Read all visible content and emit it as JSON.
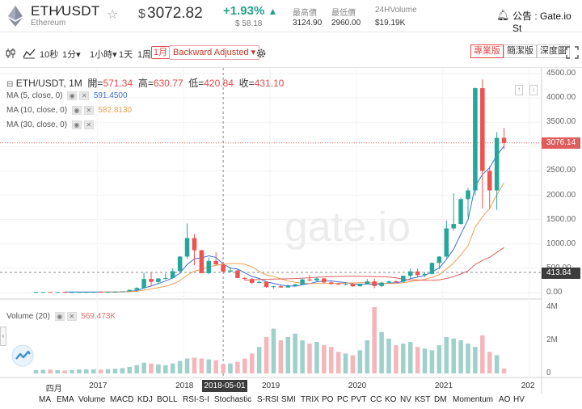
{
  "header": {
    "pair": "ETH∕USDT",
    "coin_name": "Ethereum",
    "currency_symbol": "$",
    "price": "3072.82",
    "change_pct": "+1.93%",
    "change_abs": "$ 58.18",
    "high_label": "最高價",
    "high_value": "3124.90",
    "low_label": "最低價",
    "low_value": "2960.00",
    "volume_label": "24HVolume",
    "volume_value": "$19.19K",
    "notice_text": "公告 : Gate.io St"
  },
  "toolbar": {
    "intervals": [
      "10秒",
      "1分",
      "1小時",
      "1天",
      "1周",
      "1月"
    ],
    "active_interval": "1月",
    "adjust_option": "Backward Adjusted",
    "view_tabs": [
      "專業版",
      "簡潔版",
      "深度圖"
    ],
    "active_view": "專業版"
  },
  "legend": {
    "title": "ETH/USDT, 1M",
    "open_label": "開=",
    "open": "571.34",
    "high_label": "高=",
    "high": "630.77",
    "low_label": "低=",
    "low": "420.84",
    "close_label": "收=",
    "close": "431.10",
    "ma5_label": "MA (5, close, 0)",
    "ma5_value": "591.4500",
    "ma10_label": "MA (10, close, 0)",
    "ma10_value": "582.8130",
    "ma30_label": "MA (30, close, 0)",
    "volume_label": "Volume (20)",
    "volume_value": "569.473K"
  },
  "crosshair": {
    "price_label": "413.84",
    "date_label": "2018-05-01"
  },
  "last_price_label": "3076.14",
  "watermark": "gate.io",
  "price_axis": [
    "4500.00",
    "4000.00",
    "3500.00",
    "3000.00",
    "2500.00",
    "2000.00",
    "1500.00",
    "1000.00",
    "500.00",
    "0.00"
  ],
  "volume_axis": [
    "4M",
    "2M",
    "0"
  ],
  "time_axis": [
    "四月",
    "2017",
    "2018",
    "2019",
    "2020",
    "2021",
    "202"
  ],
  "indicators": [
    "MA",
    "EMA",
    "Volume",
    "MACD",
    "KDJ",
    "BOLL",
    "RSI-S-I",
    "Stochastic",
    "S-RSI",
    "SMI",
    "TRIX",
    "PO",
    "PC",
    "PVT",
    "CC",
    "KO",
    "NV",
    "KST",
    "DM",
    "Momentum",
    "AO",
    "HV"
  ],
  "colors": {
    "up": "#26a69a",
    "down": "#ef5350",
    "ma5": "#3b6fd4",
    "ma10": "#f0a050",
    "ma30": "#e05d5d",
    "accent": "#e04b4b"
  },
  "chart_data": {
    "type": "candlestick",
    "y_range": [
      0,
      4500
    ],
    "volume_range": [
      0,
      4000000
    ],
    "candles": [
      {
        "o": 11,
        "h": 12,
        "l": 10,
        "c": 12,
        "v": 200000
      },
      {
        "o": 12,
        "h": 14,
        "l": 11,
        "c": 13,
        "v": 220000
      },
      {
        "o": 13,
        "h": 15,
        "l": 11,
        "c": 12,
        "v": 230000
      },
      {
        "o": 12,
        "h": 13,
        "l": 11,
        "c": 12,
        "v": 200000
      },
      {
        "o": 12,
        "h": 13,
        "l": 10,
        "c": 11,
        "v": 180000
      },
      {
        "o": 11,
        "h": 12,
        "l": 10,
        "c": 11,
        "v": 200000
      },
      {
        "o": 11,
        "h": 13,
        "l": 10,
        "c": 12,
        "v": 240000
      },
      {
        "o": 12,
        "h": 14,
        "l": 11,
        "c": 13,
        "v": 250000
      },
      {
        "o": 13,
        "h": 15,
        "l": 12,
        "c": 14,
        "v": 250000
      },
      {
        "o": 14,
        "h": 16,
        "l": 12,
        "c": 13,
        "v": 230000
      },
      {
        "o": 13,
        "h": 17,
        "l": 12,
        "c": 15,
        "v": 260000
      },
      {
        "o": 15,
        "h": 19,
        "l": 14,
        "c": 17,
        "v": 280000
      },
      {
        "o": 17,
        "h": 25,
        "l": 16,
        "c": 24,
        "v": 320000
      },
      {
        "o": 24,
        "h": 60,
        "l": 22,
        "c": 55,
        "v": 400000
      },
      {
        "o": 55,
        "h": 110,
        "l": 50,
        "c": 95,
        "v": 500000
      },
      {
        "o": 95,
        "h": 410,
        "l": 80,
        "c": 280,
        "v": 650000
      },
      {
        "o": 280,
        "h": 420,
        "l": 130,
        "c": 220,
        "v": 600000
      },
      {
        "o": 220,
        "h": 300,
        "l": 170,
        "c": 290,
        "v": 550000
      },
      {
        "o": 290,
        "h": 395,
        "l": 270,
        "c": 300,
        "v": 500000
      },
      {
        "o": 300,
        "h": 495,
        "l": 280,
        "c": 440,
        "v": 600000
      },
      {
        "o": 440,
        "h": 750,
        "l": 420,
        "c": 740,
        "v": 750000
      },
      {
        "o": 740,
        "h": 1420,
        "l": 700,
        "c": 1120,
        "v": 900000
      },
      {
        "o": 1120,
        "h": 1200,
        "l": 560,
        "c": 870,
        "v": 950000
      },
      {
        "o": 870,
        "h": 880,
        "l": 400,
        "c": 400,
        "v": 900000
      },
      {
        "o": 400,
        "h": 720,
        "l": 380,
        "c": 650,
        "v": 850000
      },
      {
        "o": 650,
        "h": 830,
        "l": 570,
        "c": 580,
        "v": 800000
      },
      {
        "o": 571,
        "h": 631,
        "l": 421,
        "c": 431,
        "v": 569473
      },
      {
        "o": 431,
        "h": 530,
        "l": 420,
        "c": 455,
        "v": 600000
      },
      {
        "o": 455,
        "h": 475,
        "l": 300,
        "c": 300,
        "v": 700000
      },
      {
        "o": 300,
        "h": 320,
        "l": 250,
        "c": 280,
        "v": 900000
      },
      {
        "o": 280,
        "h": 300,
        "l": 180,
        "c": 200,
        "v": 1200000
      },
      {
        "o": 200,
        "h": 240,
        "l": 190,
        "c": 220,
        "v": 1600000
      },
      {
        "o": 220,
        "h": 230,
        "l": 100,
        "c": 115,
        "v": 2200000
      },
      {
        "o": 115,
        "h": 140,
        "l": 83,
        "c": 130,
        "v": 2700000
      },
      {
        "o": 130,
        "h": 160,
        "l": 100,
        "c": 105,
        "v": 2000000
      },
      {
        "o": 105,
        "h": 165,
        "l": 100,
        "c": 135,
        "v": 2200000
      },
      {
        "o": 135,
        "h": 180,
        "l": 130,
        "c": 170,
        "v": 2400000
      },
      {
        "o": 170,
        "h": 300,
        "l": 160,
        "c": 270,
        "v": 2000000
      },
      {
        "o": 270,
        "h": 365,
        "l": 230,
        "c": 250,
        "v": 1800000
      },
      {
        "o": 250,
        "h": 325,
        "l": 220,
        "c": 290,
        "v": 1900000
      },
      {
        "o": 290,
        "h": 300,
        "l": 200,
        "c": 210,
        "v": 1700000
      },
      {
        "o": 210,
        "h": 240,
        "l": 160,
        "c": 180,
        "v": 1600000
      },
      {
        "o": 180,
        "h": 200,
        "l": 160,
        "c": 175,
        "v": 1300000
      },
      {
        "o": 175,
        "h": 195,
        "l": 150,
        "c": 180,
        "v": 1200000
      },
      {
        "o": 180,
        "h": 195,
        "l": 120,
        "c": 130,
        "v": 1100000
      },
      {
        "o": 130,
        "h": 185,
        "l": 125,
        "c": 180,
        "v": 1400000
      },
      {
        "o": 180,
        "h": 280,
        "l": 170,
        "c": 230,
        "v": 2000000
      },
      {
        "o": 230,
        "h": 290,
        "l": 90,
        "c": 135,
        "v": 4000000
      },
      {
        "o": 135,
        "h": 225,
        "l": 110,
        "c": 205,
        "v": 2500000
      },
      {
        "o": 205,
        "h": 250,
        "l": 190,
        "c": 230,
        "v": 2100000
      },
      {
        "o": 230,
        "h": 250,
        "l": 200,
        "c": 225,
        "v": 1700000
      },
      {
        "o": 225,
        "h": 350,
        "l": 210,
        "c": 345,
        "v": 1800000
      },
      {
        "o": 345,
        "h": 490,
        "l": 300,
        "c": 435,
        "v": 1900000
      },
      {
        "o": 435,
        "h": 490,
        "l": 310,
        "c": 360,
        "v": 1600000
      },
      {
        "o": 360,
        "h": 420,
        "l": 320,
        "c": 385,
        "v": 1500000
      },
      {
        "o": 385,
        "h": 620,
        "l": 370,
        "c": 610,
        "v": 1400000
      },
      {
        "o": 610,
        "h": 750,
        "l": 480,
        "c": 740,
        "v": 1700000
      },
      {
        "o": 740,
        "h": 1480,
        "l": 710,
        "c": 1320,
        "v": 2200000
      },
      {
        "o": 1320,
        "h": 2040,
        "l": 1270,
        "c": 1410,
        "v": 2100000
      },
      {
        "o": 1410,
        "h": 1950,
        "l": 1400,
        "c": 1920,
        "v": 2000000
      },
      {
        "o": 1920,
        "h": 2150,
        "l": 1550,
        "c": 2100,
        "v": 1800000
      },
      {
        "o": 2100,
        "h": 4210,
        "l": 2000,
        "c": 4200,
        "v": 1600000
      },
      {
        "o": 4200,
        "h": 4380,
        "l": 1730,
        "c": 2500,
        "v": 2300000
      },
      {
        "o": 2500,
        "h": 2600,
        "l": 1720,
        "c": 2100,
        "v": 1300000
      },
      {
        "o": 2100,
        "h": 3300,
        "l": 1700,
        "c": 3180,
        "v": 1100000
      },
      {
        "o": 3180,
        "h": 3380,
        "l": 2950,
        "c": 3076,
        "v": 300000
      }
    ],
    "last_price": 3076.14
  }
}
